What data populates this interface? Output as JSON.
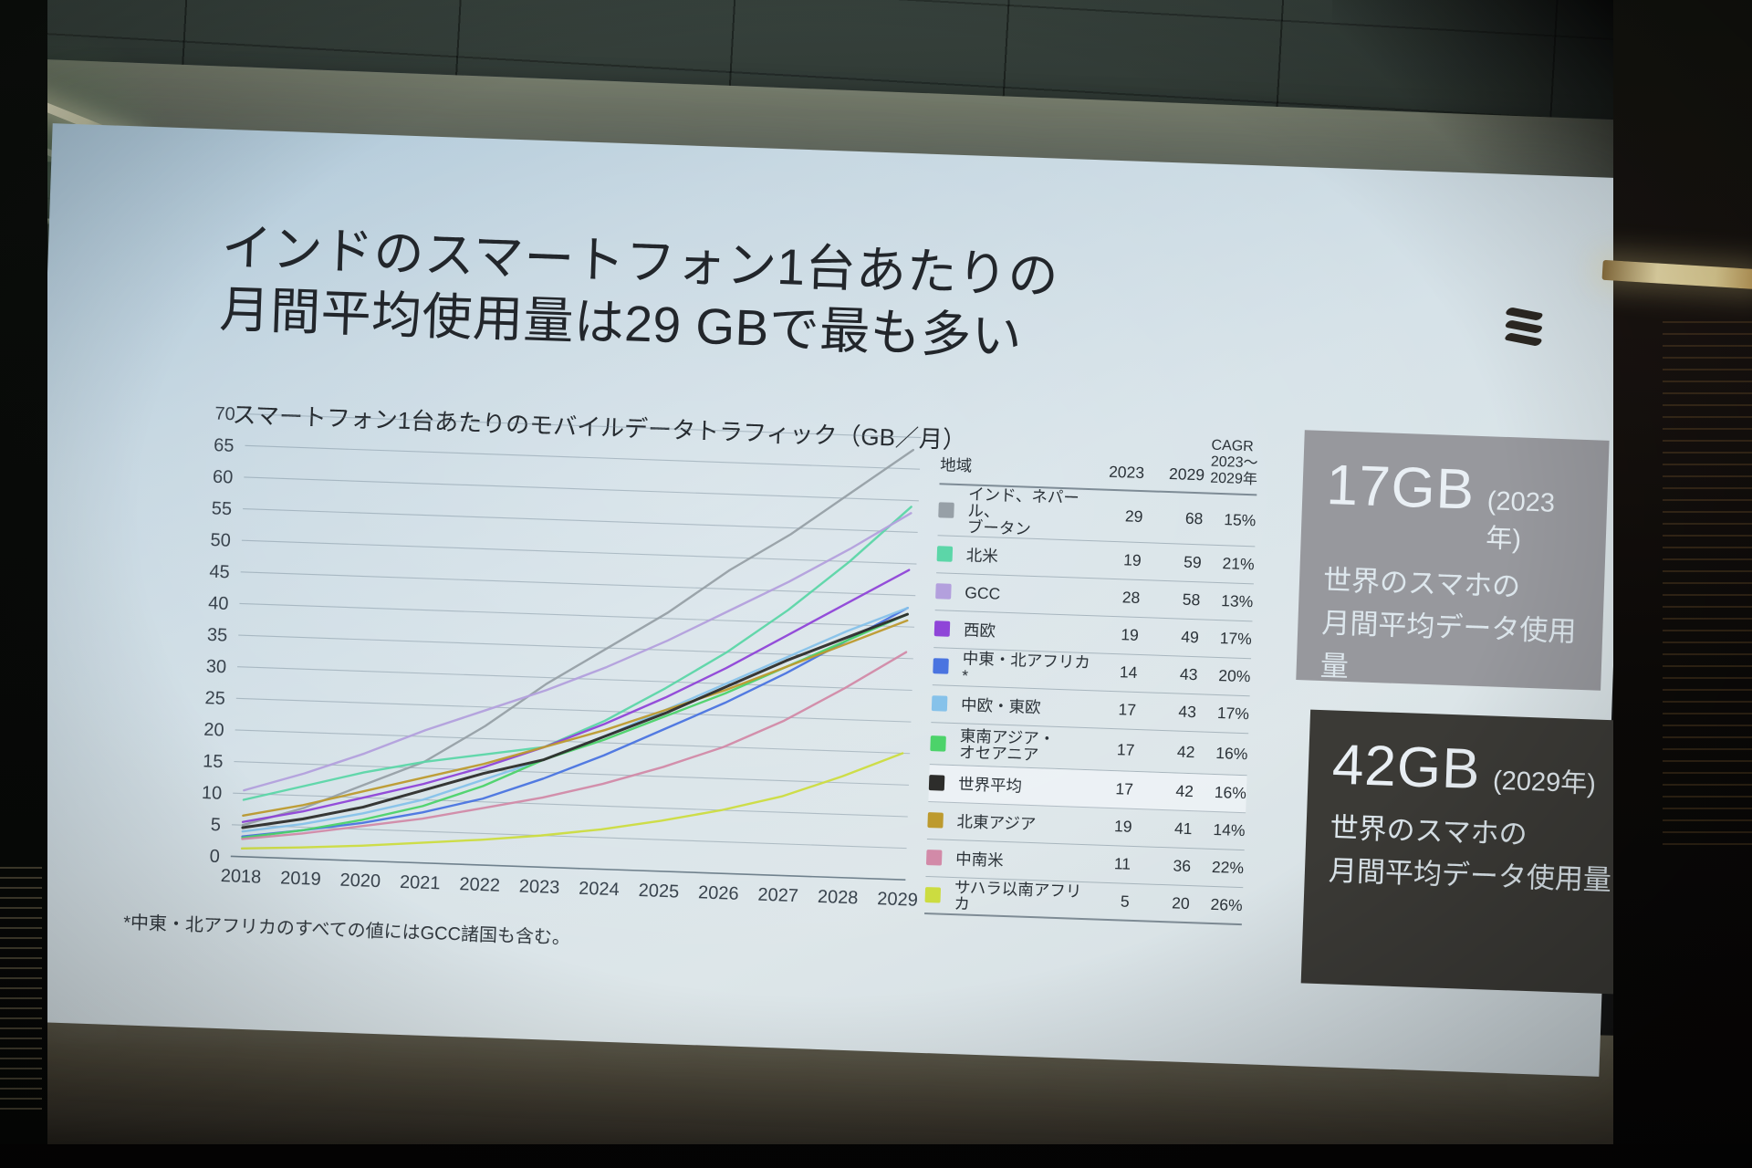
{
  "slide": {
    "title": "インドのスマートフォン1台あたりの\n月間平均使用量は29 GBで最も多い",
    "subtitle": "スマートフォン1台あたりのモバイルデータトラフィック（GB／月）",
    "footnote": "*中東・北アフリカのすべての値にはGCC諸国も含む。",
    "logo": "ericsson-logo"
  },
  "chart_data": {
    "type": "line",
    "title": "スマートフォン1台あたりのモバイルデータトラフィック（GB／月）",
    "x": [
      2018,
      2019,
      2020,
      2021,
      2022,
      2023,
      2024,
      2025,
      2026,
      2027,
      2028,
      2029
    ],
    "ylim": [
      0,
      70
    ],
    "ytick_step": 5,
    "grid": true,
    "legend_position": "right-table",
    "series": [
      {
        "name": "インド、ネパール、ブータン",
        "color": "#97a0a7",
        "values": [
          5,
          8,
          12,
          16,
          22,
          29,
          35,
          41,
          48,
          54,
          61,
          68
        ]
      },
      {
        "name": "北米",
        "color": "#5cd6a8",
        "values": [
          9,
          11.5,
          14,
          16,
          17.5,
          19,
          23.5,
          29,
          35,
          42,
          50,
          59
        ]
      },
      {
        "name": "GCC",
        "color": "#b3a0dd",
        "values": [
          10.5,
          13.5,
          17,
          21,
          24.5,
          28,
          32,
          36.5,
          41.5,
          46.5,
          52,
          58
        ]
      },
      {
        "name": "西欧",
        "color": "#8f45d8",
        "values": [
          5.5,
          7.5,
          10,
          12.5,
          15.5,
          19,
          23,
          27.5,
          32.5,
          38,
          43.5,
          49
        ]
      },
      {
        "name": "中東・北アフリカ*",
        "color": "#4a74e0",
        "values": [
          3.2,
          4.5,
          6,
          8,
          10.5,
          14,
          18,
          22.5,
          27,
          32,
          37.5,
          43
        ]
      },
      {
        "name": "中欧・東欧",
        "color": "#86c2ea",
        "values": [
          4,
          5.5,
          7.5,
          10,
          13.5,
          17,
          21,
          25.5,
          30,
          34.5,
          39,
          43
        ]
      },
      {
        "name": "東南アジア・オセアニア",
        "color": "#4cd36a",
        "values": [
          3,
          4.5,
          6.5,
          9,
          12.5,
          17,
          20.5,
          24.5,
          28.5,
          33,
          37.5,
          42
        ]
      },
      {
        "name": "世界平均",
        "color": "#2d2d2b",
        "values": [
          4.6,
          6.3,
          8.5,
          11.5,
          14.5,
          17,
          21,
          25,
          29.5,
          34,
          38,
          42
        ]
      },
      {
        "name": "北東アジア",
        "color": "#bd9a2e",
        "values": [
          6.5,
          8.5,
          11,
          13.5,
          16,
          19,
          22,
          25.5,
          29,
          33,
          37,
          41
        ]
      },
      {
        "name": "中南米",
        "color": "#d28aa8",
        "values": [
          2.8,
          4,
          5.5,
          7,
          9,
          11,
          13.5,
          16.5,
          20,
          24.5,
          30,
          36
        ]
      },
      {
        "name": "サハラ以南アフリカ",
        "color": "#ccdc40",
        "values": [
          1.3,
          1.8,
          2.4,
          3.2,
          4,
          5,
          6.3,
          8,
          10,
          12.5,
          16,
          20
        ]
      }
    ]
  },
  "table": {
    "col_headers": {
      "region": "地域",
      "y2023": "2023",
      "y2029": "2029",
      "cagr": "CAGR\n2023～\n2029年"
    },
    "rows": [
      {
        "region": "インド、ネパール、\nブータン",
        "color": "#97a0a7",
        "y2023": "29",
        "y2029": "68",
        "cagr": "15%",
        "highlight": false
      },
      {
        "region": "北米",
        "color": "#5cd6a8",
        "y2023": "19",
        "y2029": "59",
        "cagr": "21%",
        "highlight": false
      },
      {
        "region": "GCC",
        "color": "#b3a0dd",
        "y2023": "28",
        "y2029": "58",
        "cagr": "13%",
        "highlight": false
      },
      {
        "region": "西欧",
        "color": "#8f45d8",
        "y2023": "19",
        "y2029": "49",
        "cagr": "17%",
        "highlight": false
      },
      {
        "region": "中東・北アフリカ*",
        "color": "#4a74e0",
        "y2023": "14",
        "y2029": "43",
        "cagr": "20%",
        "highlight": false
      },
      {
        "region": "中欧・東欧",
        "color": "#86c2ea",
        "y2023": "17",
        "y2029": "43",
        "cagr": "17%",
        "highlight": false
      },
      {
        "region": "東南アジア・\nオセアニア",
        "color": "#4cd36a",
        "y2023": "17",
        "y2029": "42",
        "cagr": "16%",
        "highlight": false
      },
      {
        "region": "世界平均",
        "color": "#2d2d2b",
        "y2023": "17",
        "y2029": "42",
        "cagr": "16%",
        "highlight": true
      },
      {
        "region": "北東アジア",
        "color": "#bd9a2e",
        "y2023": "19",
        "y2029": "41",
        "cagr": "14%",
        "highlight": false
      },
      {
        "region": "中南米",
        "color": "#d28aa8",
        "y2023": "11",
        "y2029": "36",
        "cagr": "22%",
        "highlight": false
      },
      {
        "region": "サハラ以南アフリカ",
        "color": "#ccdc40",
        "y2023": "5",
        "y2029": "20",
        "cagr": "26%",
        "highlight": false
      }
    ]
  },
  "panels": [
    {
      "value": "17GB",
      "year": "(2023年)",
      "desc": "世界のスマホの\n月間平均データ使用量",
      "bg": "#97989d"
    },
    {
      "value": "42GB",
      "year": "(2029年)",
      "desc": "世界のスマホの\n月間平均データ使用量",
      "bg": "#3b3a36"
    }
  ]
}
